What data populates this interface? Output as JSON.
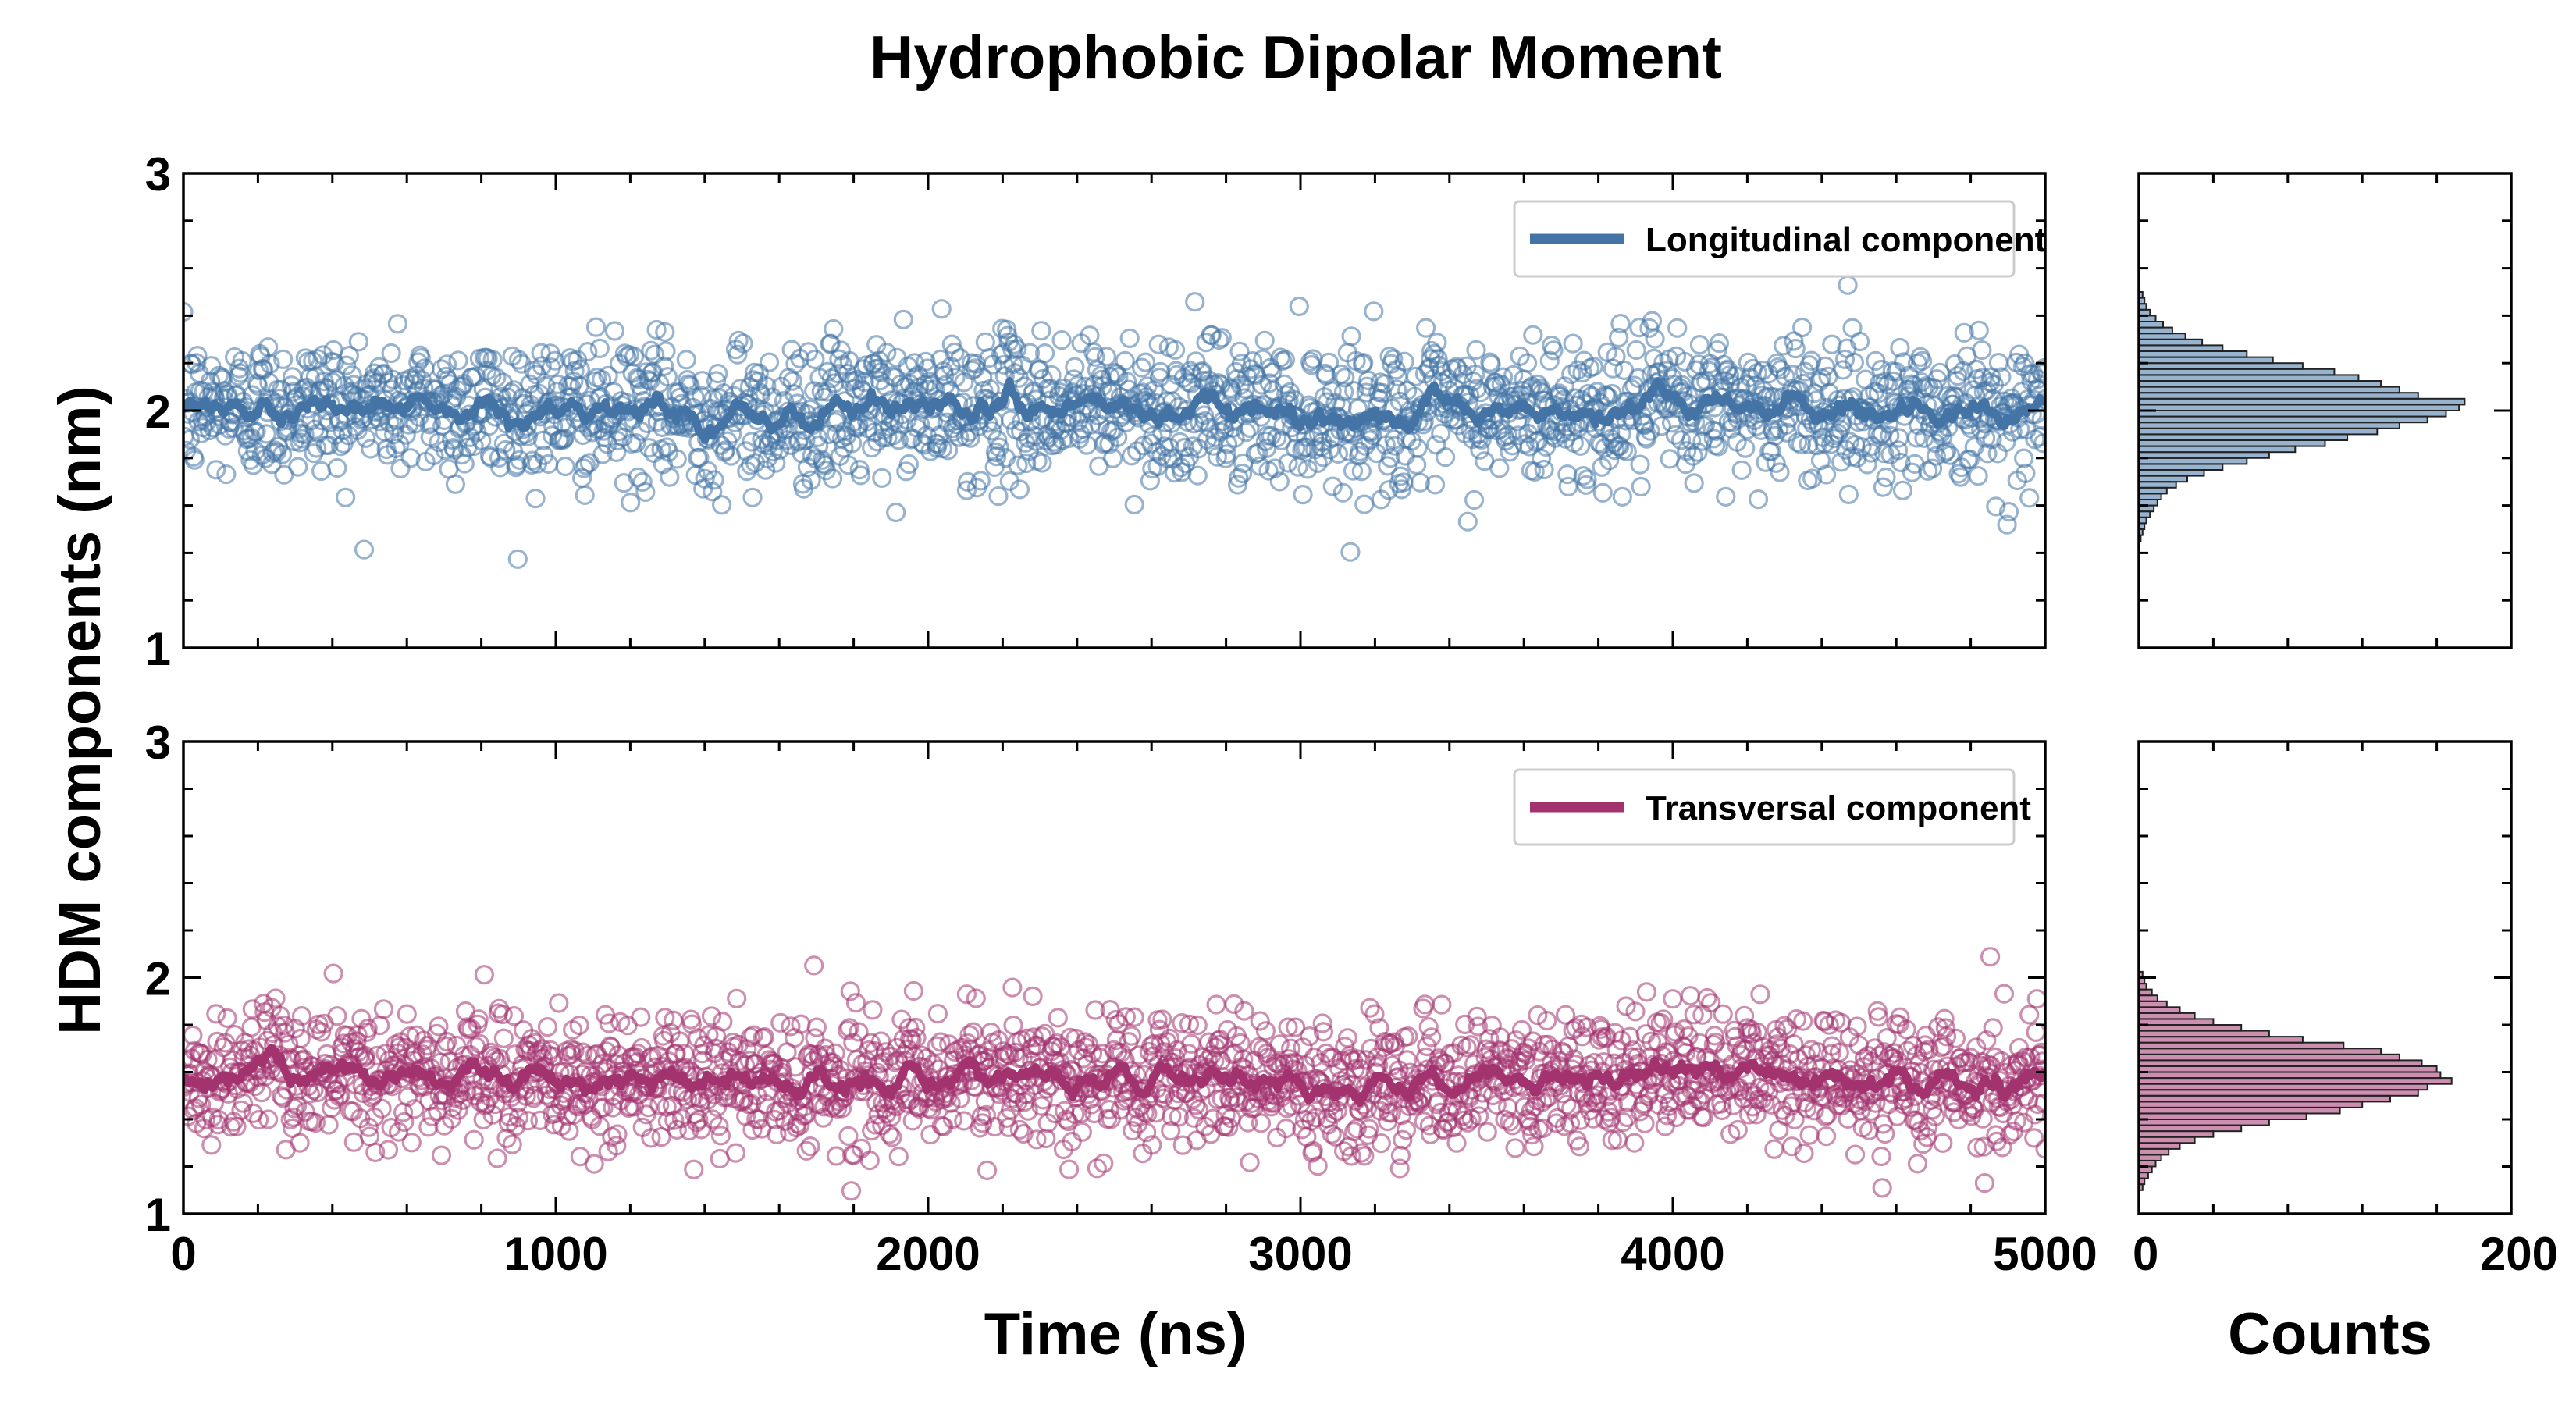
{
  "figure": {
    "title": "Hydrophobic Dipolar Moment"
  },
  "chart_data": [
    {
      "type": "scatter",
      "panel": "top-left",
      "title": "",
      "xlabel": "",
      "ylabel": "HDM components (nm)",
      "xlim": [
        0,
        5000
      ],
      "ylim": [
        1,
        3
      ],
      "yticks": [
        1,
        2,
        3
      ],
      "xticks": [
        0,
        1000,
        2000,
        3000,
        4000,
        5000
      ],
      "legend": "top-right",
      "series": [
        {
          "name": "Longitudinal component",
          "color": "#4474a6",
          "marker": "open-circle",
          "approx_points": 2000,
          "mean": 2.0,
          "std": 0.15,
          "running_average": true
        }
      ]
    },
    {
      "type": "scatter",
      "panel": "bottom-left",
      "title": "",
      "xlabel": "Time (ns)",
      "ylabel": "HDM components (nm)",
      "xlim": [
        0,
        5000
      ],
      "ylim": [
        1,
        3
      ],
      "yticks": [
        1,
        2,
        3
      ],
      "xticks": [
        0,
        1000,
        2000,
        3000,
        4000,
        5000
      ],
      "xtick_labels": [
        "0",
        "1000",
        "2000",
        "3000",
        "4000",
        "5000"
      ],
      "legend": "top-right",
      "series": [
        {
          "name": "Transversal component",
          "color": "#a3336f",
          "marker": "open-circle",
          "approx_points": 2000,
          "mean": 1.57,
          "std": 0.14,
          "running_average": true
        }
      ]
    },
    {
      "type": "bar",
      "orientation": "horizontal",
      "panel": "top-right",
      "xlabel": "",
      "xlim": [
        0,
        200
      ],
      "ylim": [
        1,
        3
      ],
      "bin_width": 0.025,
      "color": "#4474a6",
      "bins": [
        {
          "y": 1.45,
          "count": 1
        },
        {
          "y": 1.475,
          "count": 2
        },
        {
          "y": 1.5,
          "count": 3
        },
        {
          "y": 1.525,
          "count": 4
        },
        {
          "y": 1.55,
          "count": 6
        },
        {
          "y": 1.575,
          "count": 8
        },
        {
          "y": 1.6,
          "count": 10
        },
        {
          "y": 1.625,
          "count": 12
        },
        {
          "y": 1.65,
          "count": 15
        },
        {
          "y": 1.675,
          "count": 20
        },
        {
          "y": 1.7,
          "count": 26
        },
        {
          "y": 1.725,
          "count": 35
        },
        {
          "y": 1.75,
          "count": 45
        },
        {
          "y": 1.775,
          "count": 58
        },
        {
          "y": 1.8,
          "count": 70
        },
        {
          "y": 1.825,
          "count": 84
        },
        {
          "y": 1.85,
          "count": 100
        },
        {
          "y": 1.875,
          "count": 112
        },
        {
          "y": 1.9,
          "count": 128
        },
        {
          "y": 1.925,
          "count": 140
        },
        {
          "y": 1.95,
          "count": 155
        },
        {
          "y": 1.975,
          "count": 165
        },
        {
          "y": 2.0,
          "count": 172
        },
        {
          "y": 2.025,
          "count": 175
        },
        {
          "y": 2.05,
          "count": 150
        },
        {
          "y": 2.075,
          "count": 140
        },
        {
          "y": 2.1,
          "count": 130
        },
        {
          "y": 2.125,
          "count": 118
        },
        {
          "y": 2.15,
          "count": 105
        },
        {
          "y": 2.175,
          "count": 88
        },
        {
          "y": 2.2,
          "count": 72
        },
        {
          "y": 2.225,
          "count": 58
        },
        {
          "y": 2.25,
          "count": 45
        },
        {
          "y": 2.275,
          "count": 34
        },
        {
          "y": 2.3,
          "count": 25
        },
        {
          "y": 2.325,
          "count": 18
        },
        {
          "y": 2.35,
          "count": 13
        },
        {
          "y": 2.375,
          "count": 9
        },
        {
          "y": 2.4,
          "count": 6
        },
        {
          "y": 2.425,
          "count": 4
        },
        {
          "y": 2.45,
          "count": 3
        },
        {
          "y": 2.475,
          "count": 2
        }
      ]
    },
    {
      "type": "bar",
      "orientation": "horizontal",
      "panel": "bottom-right",
      "xlabel": "Counts",
      "xlim": [
        0,
        200
      ],
      "xticks": [
        0,
        200
      ],
      "xtick_labels": [
        "0",
        "200"
      ],
      "ylim": [
        1,
        3
      ],
      "bin_width": 0.025,
      "color": "#a3336f",
      "bins": [
        {
          "y": 1.1,
          "count": 2
        },
        {
          "y": 1.125,
          "count": 3
        },
        {
          "y": 1.15,
          "count": 5
        },
        {
          "y": 1.175,
          "count": 7
        },
        {
          "y": 1.2,
          "count": 9
        },
        {
          "y": 1.225,
          "count": 12
        },
        {
          "y": 1.25,
          "count": 16
        },
        {
          "y": 1.275,
          "count": 22
        },
        {
          "y": 1.3,
          "count": 30
        },
        {
          "y": 1.325,
          "count": 40
        },
        {
          "y": 1.35,
          "count": 55
        },
        {
          "y": 1.375,
          "count": 70
        },
        {
          "y": 1.4,
          "count": 90
        },
        {
          "y": 1.425,
          "count": 108
        },
        {
          "y": 1.45,
          "count": 120
        },
        {
          "y": 1.475,
          "count": 135
        },
        {
          "y": 1.5,
          "count": 150
        },
        {
          "y": 1.525,
          "count": 155
        },
        {
          "y": 1.55,
          "count": 168
        },
        {
          "y": 1.575,
          "count": 162
        },
        {
          "y": 1.6,
          "count": 160
        },
        {
          "y": 1.625,
          "count": 152
        },
        {
          "y": 1.65,
          "count": 140
        },
        {
          "y": 1.675,
          "count": 130
        },
        {
          "y": 1.7,
          "count": 110
        },
        {
          "y": 1.725,
          "count": 88
        },
        {
          "y": 1.75,
          "count": 70
        },
        {
          "y": 1.775,
          "count": 55
        },
        {
          "y": 1.8,
          "count": 40
        },
        {
          "y": 1.825,
          "count": 30
        },
        {
          "y": 1.85,
          "count": 22
        },
        {
          "y": 1.875,
          "count": 15
        },
        {
          "y": 1.9,
          "count": 10
        },
        {
          "y": 1.925,
          "count": 7
        },
        {
          "y": 1.95,
          "count": 4
        },
        {
          "y": 1.975,
          "count": 3
        },
        {
          "y": 2.0,
          "count": 2
        }
      ]
    }
  ]
}
